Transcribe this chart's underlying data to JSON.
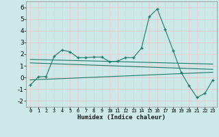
{
  "xlabel": "Humidex (Indice chaleur)",
  "background_color": "#cce8e8",
  "grid_color": "#e8d0d0",
  "line_color": "#1a7a6a",
  "xlim": [
    -0.5,
    23.5
  ],
  "ylim": [
    -2.5,
    6.5
  ],
  "xticks": [
    0,
    1,
    2,
    3,
    4,
    5,
    6,
    7,
    8,
    9,
    10,
    11,
    12,
    13,
    14,
    15,
    16,
    17,
    18,
    19,
    20,
    21,
    22,
    23
  ],
  "yticks": [
    -2,
    -1,
    0,
    1,
    2,
    3,
    4,
    5,
    6
  ],
  "main_line_x": [
    0,
    1,
    2,
    3,
    4,
    5,
    6,
    7,
    8,
    9,
    10,
    11,
    12,
    13,
    14,
    15,
    16,
    17,
    18,
    19,
    20,
    21,
    22,
    23
  ],
  "main_line_y": [
    -0.65,
    0.05,
    0.1,
    1.8,
    2.35,
    2.2,
    1.7,
    1.7,
    1.75,
    1.75,
    1.35,
    1.4,
    1.7,
    1.7,
    2.5,
    5.2,
    5.85,
    4.1,
    2.3,
    0.45,
    -0.7,
    -1.7,
    -1.35,
    -0.2
  ],
  "line2_x": [
    0,
    23
  ],
  "line2_y": [
    1.55,
    1.15
  ],
  "line3_x": [
    0,
    23
  ],
  "line3_y": [
    1.25,
    0.7
  ],
  "line4_x": [
    0,
    23
  ],
  "line4_y": [
    -0.2,
    0.45
  ]
}
